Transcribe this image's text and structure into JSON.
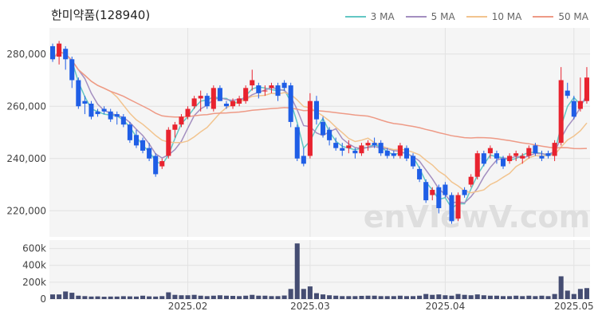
{
  "title": "한미약품(128940)",
  "watermark": "enVIewV.com",
  "legend": [
    {
      "label": "3 MA",
      "color": "#63c7c4"
    },
    {
      "label": "5 MA",
      "color": "#a48fc0"
    },
    {
      "label": "10 MA",
      "color": "#f2c48f"
    },
    {
      "label": "50 MA",
      "color": "#ee9a86"
    }
  ],
  "colors": {
    "up": "#e8232f",
    "down": "#1f5ee6",
    "volume": "#454d72",
    "panel_bg": "#f5f5f5"
  },
  "chart_data": [
    {
      "type": "candlestick",
      "title": "한미약품(128940)",
      "ylim": [
        210000,
        290000
      ],
      "yticks": [
        220000,
        240000,
        260000,
        280000
      ],
      "ytick_labels": [
        "220,000",
        "240,000",
        "260,000",
        "280,000"
      ],
      "xticks": [
        {
          "index": 21,
          "label": "2025.02"
        },
        {
          "index": 40,
          "label": "2025.03"
        },
        {
          "index": 61,
          "label": "2025.04"
        },
        {
          "index": 81,
          "label": "2025.05"
        }
      ],
      "grid": true,
      "legend_position": "top-right",
      "candles": [
        [
          283000,
          284000,
          277000,
          278000
        ],
        [
          279000,
          285000,
          276000,
          284000
        ],
        [
          282000,
          283000,
          274000,
          278000
        ],
        [
          278000,
          279000,
          267000,
          270000
        ],
        [
          270000,
          271000,
          259000,
          260000
        ],
        [
          262000,
          264000,
          257000,
          261000
        ],
        [
          261000,
          262000,
          255000,
          256000
        ],
        [
          258000,
          259000,
          256000,
          257000
        ],
        [
          259000,
          260000,
          257000,
          258000
        ],
        [
          258000,
          259000,
          254000,
          255000
        ],
        [
          257000,
          258000,
          253000,
          256000
        ],
        [
          256000,
          257000,
          252000,
          253000
        ],
        [
          253000,
          254000,
          246000,
          247000
        ],
        [
          249000,
          251000,
          244000,
          245000
        ],
        [
          247000,
          248000,
          242000,
          243000
        ],
        [
          244000,
          246000,
          239000,
          240000
        ],
        [
          241000,
          242000,
          233000,
          234000
        ],
        [
          237000,
          240000,
          236000,
          239000
        ],
        [
          241000,
          252000,
          240000,
          251000
        ],
        [
          251000,
          254000,
          248000,
          253000
        ],
        [
          253000,
          257000,
          252000,
          256000
        ],
        [
          256000,
          260000,
          255000,
          259000
        ],
        [
          260000,
          264000,
          259000,
          263000
        ],
        [
          263000,
          266000,
          258000,
          264000
        ],
        [
          264000,
          265000,
          259000,
          260000
        ],
        [
          259000,
          268000,
          258000,
          267000
        ],
        [
          267000,
          268000,
          262000,
          262000
        ],
        [
          261000,
          262000,
          259000,
          260000
        ],
        [
          260000,
          263000,
          259000,
          262000
        ],
        [
          261000,
          264000,
          260000,
          263000
        ],
        [
          262000,
          268000,
          261000,
          267000
        ],
        [
          268000,
          274000,
          266000,
          270000
        ],
        [
          268000,
          269000,
          263000,
          265000
        ],
        [
          266000,
          268000,
          264000,
          266000
        ],
        [
          267000,
          269000,
          265000,
          268000
        ],
        [
          268000,
          269000,
          262000,
          264000
        ],
        [
          269000,
          270000,
          266000,
          267000
        ],
        [
          268000,
          269000,
          252000,
          254000
        ],
        [
          252000,
          253000,
          239000,
          240000
        ],
        [
          241000,
          244000,
          237000,
          238000
        ],
        [
          241000,
          265000,
          240000,
          262000
        ],
        [
          262000,
          264000,
          253000,
          255000
        ],
        [
          254000,
          256000,
          248000,
          249000
        ],
        [
          251000,
          252000,
          245000,
          247000
        ],
        [
          246000,
          248000,
          243000,
          244000
        ],
        [
          244000,
          246000,
          241000,
          243000
        ],
        [
          244000,
          247000,
          242000,
          245000
        ],
        [
          243000,
          244000,
          240000,
          242000
        ],
        [
          242000,
          246000,
          241000,
          245000
        ],
        [
          245000,
          247000,
          243000,
          246000
        ],
        [
          246000,
          248000,
          244000,
          245000
        ],
        [
          246000,
          247000,
          241000,
          242000
        ],
        [
          243000,
          244000,
          240000,
          241000
        ],
        [
          242000,
          243000,
          240000,
          241000
        ],
        [
          241000,
          246000,
          240000,
          245000
        ],
        [
          244000,
          245000,
          239000,
          240000
        ],
        [
          241000,
          242000,
          236000,
          237000
        ],
        [
          236000,
          237000,
          231000,
          232000
        ],
        [
          231000,
          232000,
          223000,
          224000
        ],
        [
          226000,
          229000,
          224000,
          228000
        ],
        [
          229000,
          230000,
          219000,
          221000
        ],
        [
          230000,
          231000,
          225000,
          226000
        ],
        [
          226000,
          227000,
          215000,
          216000
        ],
        [
          217000,
          227000,
          216000,
          226000
        ],
        [
          228000,
          229000,
          225000,
          226000
        ],
        [
          230000,
          234000,
          229000,
          233000
        ],
        [
          233000,
          243000,
          232000,
          242000
        ],
        [
          242000,
          243000,
          237000,
          238000
        ],
        [
          242000,
          245000,
          240000,
          244000
        ],
        [
          242000,
          243000,
          238000,
          240000
        ],
        [
          240000,
          241000,
          236000,
          237000
        ],
        [
          239000,
          242000,
          238000,
          241000
        ],
        [
          241000,
          243000,
          239000,
          242000
        ],
        [
          240000,
          242000,
          238000,
          241000
        ],
        [
          241000,
          245000,
          240000,
          244000
        ],
        [
          245000,
          246000,
          241000,
          242000
        ],
        [
          241000,
          243000,
          239000,
          240000
        ],
        [
          242000,
          243000,
          240000,
          241000
        ],
        [
          241000,
          247000,
          239000,
          246000
        ],
        [
          246000,
          275000,
          245000,
          270000
        ],
        [
          266000,
          269000,
          263000,
          264000
        ],
        [
          262000,
          264000,
          255000,
          256000
        ],
        [
          259000,
          271000,
          258000,
          262000
        ],
        [
          262000,
          275000,
          261000,
          271000
        ]
      ],
      "volume_ylim": [
        0,
        700000
      ],
      "volume_yticks": [
        0,
        200000,
        400000,
        600000
      ],
      "volume_ytick_labels": [
        "0",
        "200k",
        "400k",
        "600k"
      ],
      "volume": [
        55000,
        55000,
        90000,
        75000,
        40000,
        35000,
        30000,
        32000,
        28000,
        30000,
        30000,
        34000,
        32000,
        30000,
        40000,
        32000,
        30000,
        35000,
        80000,
        50000,
        45000,
        45000,
        50000,
        40000,
        35000,
        40000,
        45000,
        40000,
        38000,
        35000,
        40000,
        50000,
        40000,
        40000,
        35000,
        35000,
        42000,
        120000,
        660000,
        120000,
        150000,
        70000,
        55000,
        45000,
        40000,
        35000,
        35000,
        35000,
        38000,
        40000,
        40000,
        35000,
        35000,
        35000,
        40000,
        35000,
        35000,
        40000,
        60000,
        50000,
        55000,
        45000,
        40000,
        60000,
        50000,
        45000,
        55000,
        45000,
        40000,
        40000,
        35000,
        35000,
        40000,
        35000,
        40000,
        35000,
        40000,
        35000,
        60000,
        270000,
        100000,
        60000,
        120000,
        130000
      ]
    }
  ]
}
